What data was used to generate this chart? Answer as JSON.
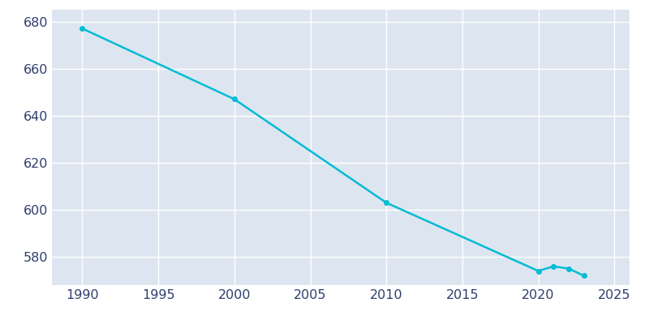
{
  "years": [
    1990,
    2000,
    2010,
    2020,
    2021,
    2022,
    2023
  ],
  "population": [
    677,
    647,
    603,
    574,
    576,
    575,
    572
  ],
  "line_color": "#00bcd4",
  "marker": "o",
  "marker_size": 4,
  "bg_color": "#dde6f0",
  "fig_bg_color": "#ffffff",
  "grid_color": "#ffffff",
  "xlim": [
    1988,
    2026
  ],
  "ylim": [
    568,
    685
  ],
  "yticks": [
    580,
    600,
    620,
    640,
    660,
    680
  ],
  "xticks": [
    1990,
    1995,
    2000,
    2005,
    2010,
    2015,
    2020,
    2025
  ],
  "tick_color": "#2e3f6e",
  "tick_fontsize": 11.5
}
